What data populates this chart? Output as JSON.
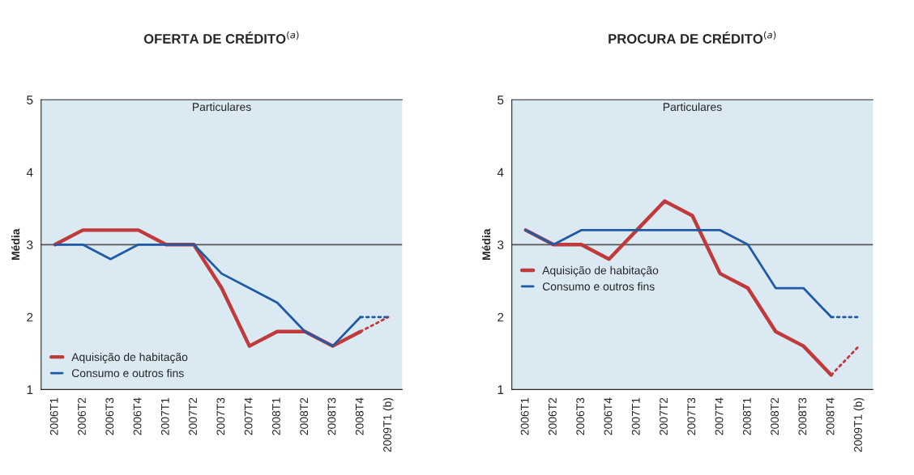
{
  "chart_data": [
    {
      "type": "line",
      "title": "OFERTA DE CRÉDITO$^{(a)}$",
      "ylabel": "Média",
      "annotations": [
        "Particulares"
      ],
      "categories": [
        "2006T1",
        "2006T2",
        "2006T3",
        "2006T4",
        "2007T1",
        "2007T2",
        "2007T3",
        "2007T4",
        "2008T1",
        "2008T2",
        "2008T3",
        "2008T4",
        "2009T1 (b)"
      ],
      "series": [
        {
          "name": "Aquisição de habitação",
          "color": "#c0393b",
          "values": [
            3.0,
            3.2,
            3.2,
            3.2,
            3.0,
            3.0,
            2.4,
            1.6,
            1.8,
            1.8,
            1.6,
            1.8,
            null
          ]
        },
        {
          "name": "Consumo e outros fins",
          "color": "#1f5aa6",
          "values": [
            3.0,
            3.0,
            2.8,
            3.0,
            3.0,
            3.0,
            2.6,
            2.4,
            2.2,
            1.8,
            1.6,
            2.0,
            null
          ]
        },
        {
          "color": "#c0393b",
          "line_style": "dotted",
          "values": [
            null,
            null,
            null,
            null,
            null,
            null,
            null,
            null,
            null,
            null,
            null,
            1.8,
            2.0
          ]
        },
        {
          "color": "#1f5aa6",
          "line_style": "dotted",
          "values": [
            null,
            null,
            null,
            null,
            null,
            null,
            null,
            null,
            null,
            null,
            null,
            2.0,
            2.0
          ]
        }
      ],
      "ylim": [
        1,
        5
      ],
      "yticks": [
        1,
        2,
        3,
        4,
        5
      ],
      "ref_lines": [
        {
          "axis": "y",
          "value": 3,
          "color": "#555555"
        }
      ],
      "legend": "bottom left",
      "grid": false
    },
    {
      "type": "line",
      "title": "PROCURA DE CRÉDITO$^{(a)}$",
      "ylabel": "Média",
      "annotations": [
        "Particulares"
      ],
      "categories": [
        "2006T1",
        "2006T2",
        "2006T3",
        "2006T4",
        "2007T1",
        "2007T2",
        "2007T3",
        "2007T4",
        "2008T1",
        "2008T2",
        "2008T3",
        "2008T4",
        "2009T1 (b)"
      ],
      "series": [
        {
          "name": "Aquisição de habitação",
          "color": "#c0393b",
          "values": [
            3.2,
            3.0,
            3.0,
            2.8,
            3.2,
            3.6,
            3.4,
            2.6,
            2.4,
            1.8,
            1.6,
            1.2,
            null
          ]
        },
        {
          "name": "Consumo e outros fins",
          "color": "#1f5aa6",
          "values": [
            3.2,
            3.0,
            3.2,
            3.2,
            3.2,
            3.2,
            3.2,
            3.2,
            3.0,
            2.4,
            2.4,
            2.0,
            null
          ]
        },
        {
          "color": "#c0393b",
          "line_style": "dotted",
          "values": [
            null,
            null,
            null,
            null,
            null,
            null,
            null,
            null,
            null,
            null,
            null,
            1.2,
            1.6
          ]
        },
        {
          "color": "#1f5aa6",
          "line_style": "dotted",
          "values": [
            null,
            null,
            null,
            null,
            null,
            null,
            null,
            null,
            null,
            null,
            null,
            2.0,
            2.0
          ]
        }
      ],
      "ylim": [
        1,
        5
      ],
      "yticks": [
        1,
        2,
        3,
        4,
        5
      ],
      "ref_lines": [
        {
          "axis": "y",
          "value": 3,
          "color": "#555555"
        }
      ],
      "legend": "center left",
      "grid": false
    }
  ]
}
